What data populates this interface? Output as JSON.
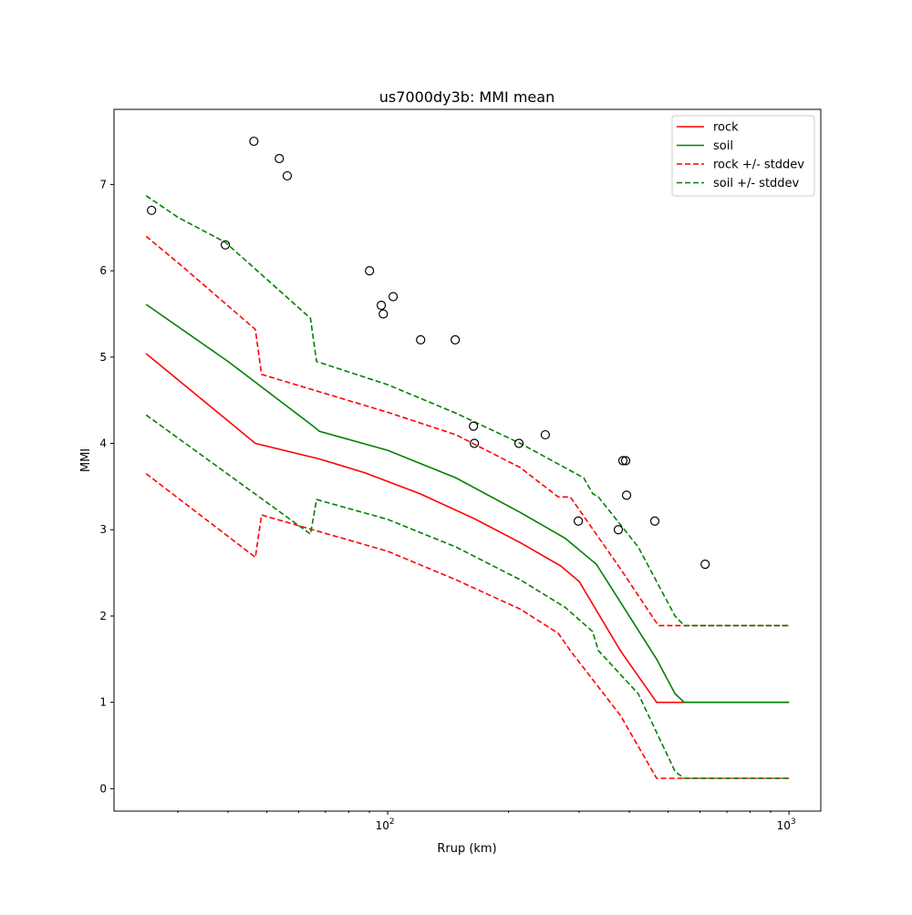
{
  "chart_data": {
    "type": "line",
    "title": "us7000dy3b: MMI mean",
    "xlabel": "Rrup (km)",
    "ylabel": "MMI",
    "xscale": "log",
    "xlim": [
      20.8,
      1200
    ],
    "ylim": [
      -0.26,
      7.87
    ],
    "x_ticks": [
      {
        "value": 100,
        "base": "10",
        "exp": "2"
      },
      {
        "value": 1000,
        "base": "10",
        "exp": "3"
      }
    ],
    "y_ticks": [
      0,
      1,
      2,
      3,
      4,
      5,
      6,
      7
    ],
    "grid": false,
    "legend_position": "top-right",
    "series": [
      {
        "name": "rock",
        "color": "#ff0000",
        "dash": false,
        "legend": true,
        "points": [
          [
            25,
            5.04
          ],
          [
            46.8,
            4.0
          ],
          [
            67.6,
            3.82
          ],
          [
            87.7,
            3.66
          ],
          [
            120,
            3.42
          ],
          [
            164,
            3.13
          ],
          [
            214,
            2.85
          ],
          [
            270,
            2.58
          ],
          [
            300,
            2.4
          ],
          [
            380,
            1.6
          ],
          [
            468,
            1.0
          ],
          [
            1000,
            1.0
          ]
        ]
      },
      {
        "name": "soil",
        "color": "#008000",
        "dash": false,
        "legend": true,
        "points": [
          [
            25,
            5.61
          ],
          [
            40,
            4.95
          ],
          [
            65.2,
            4.2
          ],
          [
            67.6,
            4.14
          ],
          [
            100,
            3.92
          ],
          [
            148,
            3.6
          ],
          [
            214,
            3.2
          ],
          [
            277,
            2.9
          ],
          [
            331,
            2.6
          ],
          [
            468,
            1.5
          ],
          [
            520,
            1.1
          ],
          [
            548,
            1.0
          ],
          [
            1000,
            1.0
          ]
        ]
      },
      {
        "name": "rock +/- stddev",
        "color": "#ff0000",
        "dash": true,
        "legend": true,
        "points": [
          [
            25,
            6.4
          ],
          [
            30.8,
            6.05
          ],
          [
            46.8,
            5.32
          ],
          [
            48.5,
            4.8
          ],
          [
            100,
            4.36
          ],
          [
            148,
            4.1
          ],
          [
            214,
            3.72
          ],
          [
            266,
            3.38
          ],
          [
            285,
            3.38
          ],
          [
            380,
            2.55
          ],
          [
            463,
            1.95
          ],
          [
            473,
            1.89
          ],
          [
            1000,
            1.89
          ]
        ]
      },
      {
        "name": "rock -stddev",
        "color": "#ff0000",
        "dash": true,
        "legend": false,
        "points": [
          [
            25,
            3.65
          ],
          [
            46.8,
            2.68
          ],
          [
            48.5,
            3.17
          ],
          [
            100,
            2.75
          ],
          [
            148,
            2.42
          ],
          [
            214,
            2.08
          ],
          [
            266,
            1.8
          ],
          [
            285,
            1.6
          ],
          [
            380,
            0.85
          ],
          [
            468,
            0.12
          ],
          [
            1000,
            0.12
          ]
        ]
      },
      {
        "name": "soil +/- stddev",
        "color": "#008000",
        "dash": true,
        "legend": true,
        "points": [
          [
            25,
            6.87
          ],
          [
            30,
            6.62
          ],
          [
            39.4,
            6.33
          ],
          [
            64.2,
            5.45
          ],
          [
            66.5,
            4.95
          ],
          [
            100,
            4.68
          ],
          [
            148,
            4.35
          ],
          [
            214,
            4.0
          ],
          [
            308,
            3.6
          ],
          [
            324,
            3.42
          ],
          [
            335,
            3.38
          ],
          [
            421,
            2.8
          ],
          [
            520,
            2.0
          ],
          [
            548,
            1.89
          ],
          [
            1000,
            1.89
          ]
        ]
      },
      {
        "name": "soil -stddev",
        "color": "#008000",
        "dash": true,
        "legend": false,
        "points": [
          [
            25,
            4.33
          ],
          [
            64.2,
            2.95
          ],
          [
            66.5,
            3.35
          ],
          [
            100,
            3.12
          ],
          [
            148,
            2.8
          ],
          [
            214,
            2.42
          ],
          [
            277,
            2.1
          ],
          [
            324,
            1.82
          ],
          [
            335,
            1.6
          ],
          [
            421,
            1.1
          ],
          [
            520,
            0.2
          ],
          [
            548,
            0.12
          ],
          [
            1000,
            0.12
          ]
        ]
      }
    ],
    "observations": [
      [
        25.8,
        6.7
      ],
      [
        39.4,
        6.3
      ],
      [
        46.4,
        7.5
      ],
      [
        53.7,
        7.3
      ],
      [
        56.2,
        7.1
      ],
      [
        90.1,
        6.0
      ],
      [
        96.4,
        5.6
      ],
      [
        97.5,
        5.5
      ],
      [
        103.2,
        5.7
      ],
      [
        120.8,
        5.2
      ],
      [
        147.3,
        5.2
      ],
      [
        163.6,
        4.2
      ],
      [
        164.4,
        4.0
      ],
      [
        212.4,
        4.0
      ],
      [
        247,
        4.1
      ],
      [
        298.5,
        3.1
      ],
      [
        375.6,
        3.0
      ],
      [
        385.6,
        3.8
      ],
      [
        391.7,
        3.8
      ],
      [
        393.8,
        3.4
      ],
      [
        463,
        3.1
      ],
      [
        618,
        2.6
      ]
    ]
  }
}
